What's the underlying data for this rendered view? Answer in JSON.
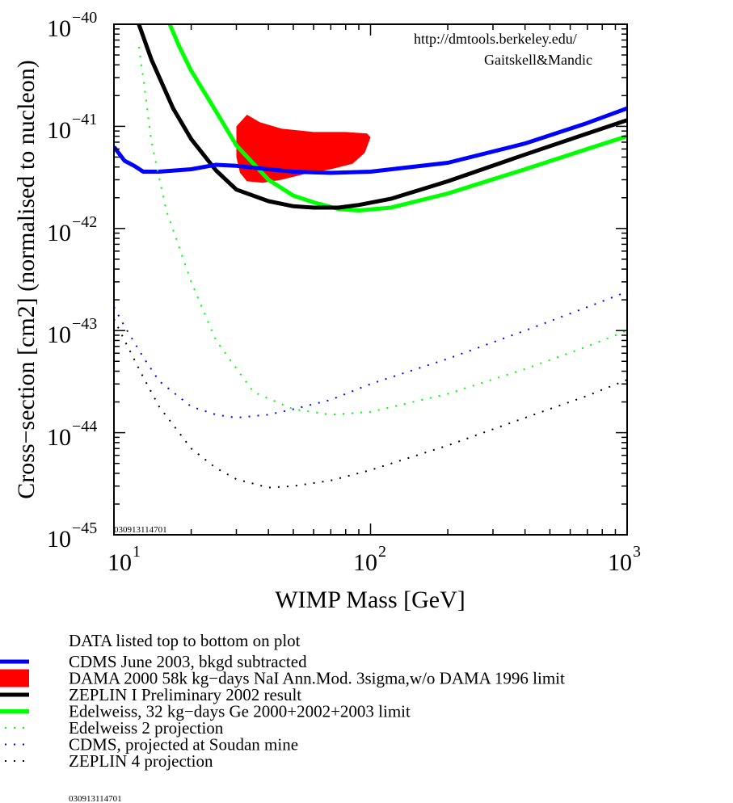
{
  "chart_data": {
    "type": "line",
    "xlabel": "WIMP Mass [GeV]",
    "ylabel": "Cross−section [cm2] (normalised to nucleon)",
    "xscale": "log",
    "yscale": "log",
    "xlim": [
      10,
      1000
    ],
    "ylim": [
      1e-45,
      1e-40
    ],
    "x_ticks": [
      {
        "base": "10",
        "exp": "1"
      },
      {
        "base": "10",
        "exp": "2"
      },
      {
        "base": "10",
        "exp": "3"
      }
    ],
    "y_ticks": [
      {
        "base": "10",
        "exp": "−45"
      },
      {
        "base": "10",
        "exp": "−44"
      },
      {
        "base": "10",
        "exp": "−43"
      },
      {
        "base": "10",
        "exp": "−42"
      },
      {
        "base": "10",
        "exp": "−41"
      },
      {
        "base": "10",
        "exp": "−40"
      }
    ],
    "annotations": {
      "url": "http://dmtools.berkeley.edu/",
      "credit": "Gaitskell&Mandic",
      "plot_id": "030913114701"
    },
    "series": [
      {
        "name": "CDMS June 2003, bkgd subtracted",
        "color": "#0000ff",
        "style": "solid",
        "points": [
          [
            10,
            6.3e-42
          ],
          [
            11,
            4.6e-42
          ],
          [
            12,
            4.1e-42
          ],
          [
            13,
            3.6e-42
          ],
          [
            15,
            3.6e-42
          ],
          [
            20,
            3.8e-42
          ],
          [
            25,
            4.2e-42
          ],
          [
            30,
            4.1e-42
          ],
          [
            40,
            3.8e-42
          ],
          [
            50,
            3.6e-42
          ],
          [
            70,
            3.5e-42
          ],
          [
            100,
            3.6e-42
          ],
          [
            200,
            4.4e-42
          ],
          [
            400,
            6.8e-42
          ],
          [
            700,
            1.08e-41
          ],
          [
            1000,
            1.5e-41
          ]
        ]
      },
      {
        "name": "DAMA 2000 58k kg−days NaI Ann.Mod. 3sigma,w/o DAMA 1996 limit",
        "color": "#ff0000",
        "style": "region",
        "points": [
          [
            30,
            1e-41
          ],
          [
            33,
            1.3e-41
          ],
          [
            37,
            1.1e-41
          ],
          [
            45,
            9.5e-42
          ],
          [
            60,
            8.8e-42
          ],
          [
            80,
            8.8e-42
          ],
          [
            97,
            8.5e-42
          ],
          [
            100,
            7.8e-42
          ],
          [
            95,
            5.5e-42
          ],
          [
            85,
            4.3e-42
          ],
          [
            70,
            3.8e-42
          ],
          [
            55,
            3.4e-42
          ],
          [
            45,
            3e-42
          ],
          [
            38,
            2.8e-42
          ],
          [
            33,
            2.9e-42
          ],
          [
            31,
            3.5e-42
          ],
          [
            30,
            5e-42
          ]
        ]
      },
      {
        "name": "ZEPLIN I Preliminary 2002 result",
        "color": "#000000",
        "style": "solid",
        "points": [
          [
            12.5,
            1e-40
          ],
          [
            14,
            4.5e-41
          ],
          [
            17,
            1.5e-41
          ],
          [
            20,
            7.5e-42
          ],
          [
            25,
            3.7e-42
          ],
          [
            30,
            2.4e-42
          ],
          [
            40,
            1.85e-42
          ],
          [
            50,
            1.65e-42
          ],
          [
            60,
            1.6e-42
          ],
          [
            75,
            1.6e-42
          ],
          [
            90,
            1.7e-42
          ],
          [
            120,
            1.95e-42
          ],
          [
            200,
            2.9e-42
          ],
          [
            400,
            5.3e-42
          ],
          [
            700,
            8.5e-42
          ],
          [
            1000,
            1.15e-41
          ]
        ]
      },
      {
        "name": "Edelweiss, 32 kg−days Ge 2000+2002+2003 limit",
        "color": "#00ff00",
        "style": "solid",
        "points": [
          [
            16.5,
            1e-40
          ],
          [
            18,
            6e-41
          ],
          [
            20,
            3.5e-41
          ],
          [
            25,
            1.4e-41
          ],
          [
            30,
            6.5e-42
          ],
          [
            40,
            3e-42
          ],
          [
            50,
            2.1e-42
          ],
          [
            60,
            1.8e-42
          ],
          [
            75,
            1.55e-42
          ],
          [
            90,
            1.5e-42
          ],
          [
            120,
            1.6e-42
          ],
          [
            200,
            2.2e-42
          ],
          [
            400,
            3.8e-42
          ],
          [
            700,
            6e-42
          ],
          [
            1000,
            8e-42
          ]
        ]
      },
      {
        "name": "Edelweiss 2 projection",
        "color": "#00ff00",
        "style": "dotted",
        "points": [
          [
            12.5,
            6e-41
          ],
          [
            13,
            3e-41
          ],
          [
            14,
            7e-42
          ],
          [
            16,
            1.5e-42
          ],
          [
            20,
            3e-43
          ],
          [
            25,
            8e-44
          ],
          [
            35,
            2.5e-44
          ],
          [
            50,
            1.7e-44
          ],
          [
            70,
            1.5e-44
          ],
          [
            100,
            1.6e-44
          ],
          [
            200,
            2.4e-44
          ],
          [
            400,
            4.2e-44
          ],
          [
            700,
            7e-44
          ],
          [
            1000,
            1e-43
          ]
        ]
      },
      {
        "name": "CDMS, projected at Soudan mine",
        "color": "#0000ff",
        "style": "dotted",
        "points": [
          [
            10,
            1.7e-43
          ],
          [
            11,
            1.1e-43
          ],
          [
            13,
            5.5e-44
          ],
          [
            15,
            3.2e-44
          ],
          [
            20,
            1.8e-44
          ],
          [
            25,
            1.5e-44
          ],
          [
            30,
            1.4e-44
          ],
          [
            40,
            1.5e-44
          ],
          [
            50,
            1.7e-44
          ],
          [
            70,
            2.1e-44
          ],
          [
            100,
            3e-44
          ],
          [
            200,
            5.3e-44
          ],
          [
            400,
            1e-43
          ],
          [
            700,
            1.7e-43
          ],
          [
            1000,
            2.4e-43
          ]
        ]
      },
      {
        "name": "ZEPLIN 4 projection",
        "color": "#000000",
        "style": "dotted",
        "points": [
          [
            10,
            1.3e-43
          ],
          [
            11,
            8e-44
          ],
          [
            13,
            3.5e-44
          ],
          [
            15,
            1.8e-44
          ],
          [
            20,
            7e-45
          ],
          [
            25,
            4.5e-45
          ],
          [
            30,
            3.5e-45
          ],
          [
            40,
            2.9e-45
          ],
          [
            50,
            3e-45
          ],
          [
            70,
            3.4e-45
          ],
          [
            100,
            4.3e-45
          ],
          [
            200,
            7.5e-45
          ],
          [
            400,
            1.4e-44
          ],
          [
            700,
            2.3e-44
          ],
          [
            1000,
            3.3e-44
          ]
        ]
      }
    ],
    "legend": {
      "header": "DATA listed top to bottom on plot",
      "entries": [
        {
          "label": "CDMS June 2003, bkgd subtracted",
          "color": "#0000ff",
          "style": "solid"
        },
        {
          "label": "DAMA 2000 58k kg−days NaI Ann.Mod. 3sigma,w/o DAMA 1996 limit",
          "color": "#ff0000",
          "style": "region"
        },
        {
          "label": "ZEPLIN I Preliminary 2002 result",
          "color": "#000000",
          "style": "solid"
        },
        {
          "label": "Edelweiss, 32 kg−days Ge 2000+2002+2003 limit",
          "color": "#00ff00",
          "style": "solid"
        },
        {
          "label": "Edelweiss 2 projection",
          "color": "#00ff00",
          "style": "dotted"
        },
        {
          "label": "CDMS, projected at Soudan mine",
          "color": "#0000ff",
          "style": "dotted"
        },
        {
          "label": "ZEPLIN 4 projection",
          "color": "#000000",
          "style": "dotted"
        }
      ],
      "footer": "030913114701"
    }
  }
}
